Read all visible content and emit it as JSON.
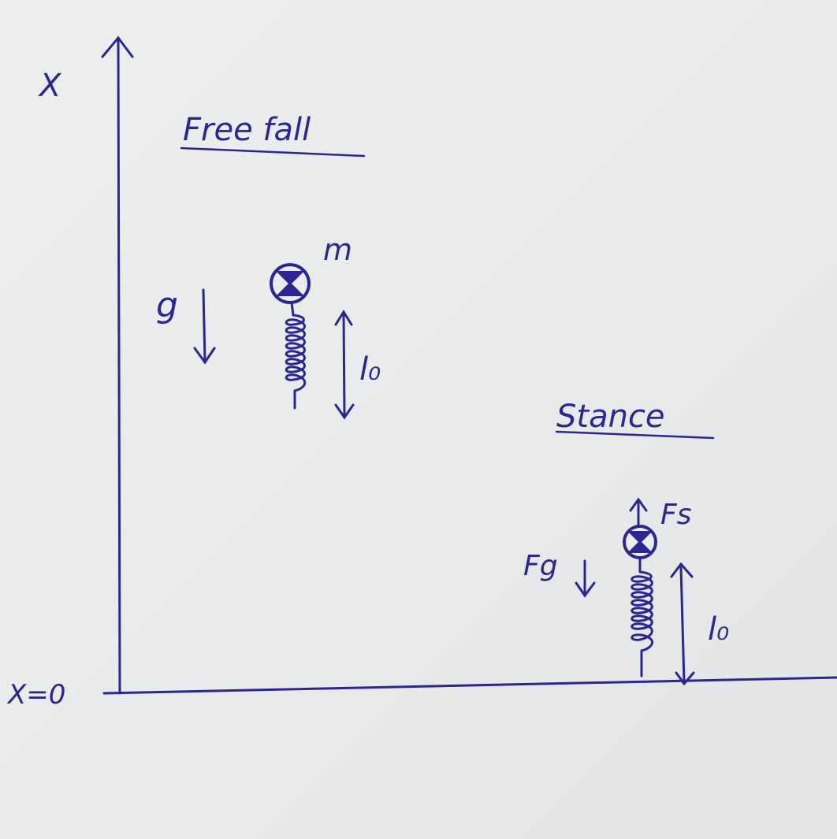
{
  "labels": {
    "x_axis": "X",
    "origin": "X=0",
    "free_fall_title": "Free fall",
    "gravity": "g",
    "mass": "m",
    "free_fall_rest_length": "l₀",
    "stance_title": "Stance",
    "spring_force": "Fs",
    "gravity_force": "Fg",
    "stance_rest_length": "l₀"
  },
  "colors": {
    "ink": "#2a2790",
    "paper": "#eaeced"
  }
}
